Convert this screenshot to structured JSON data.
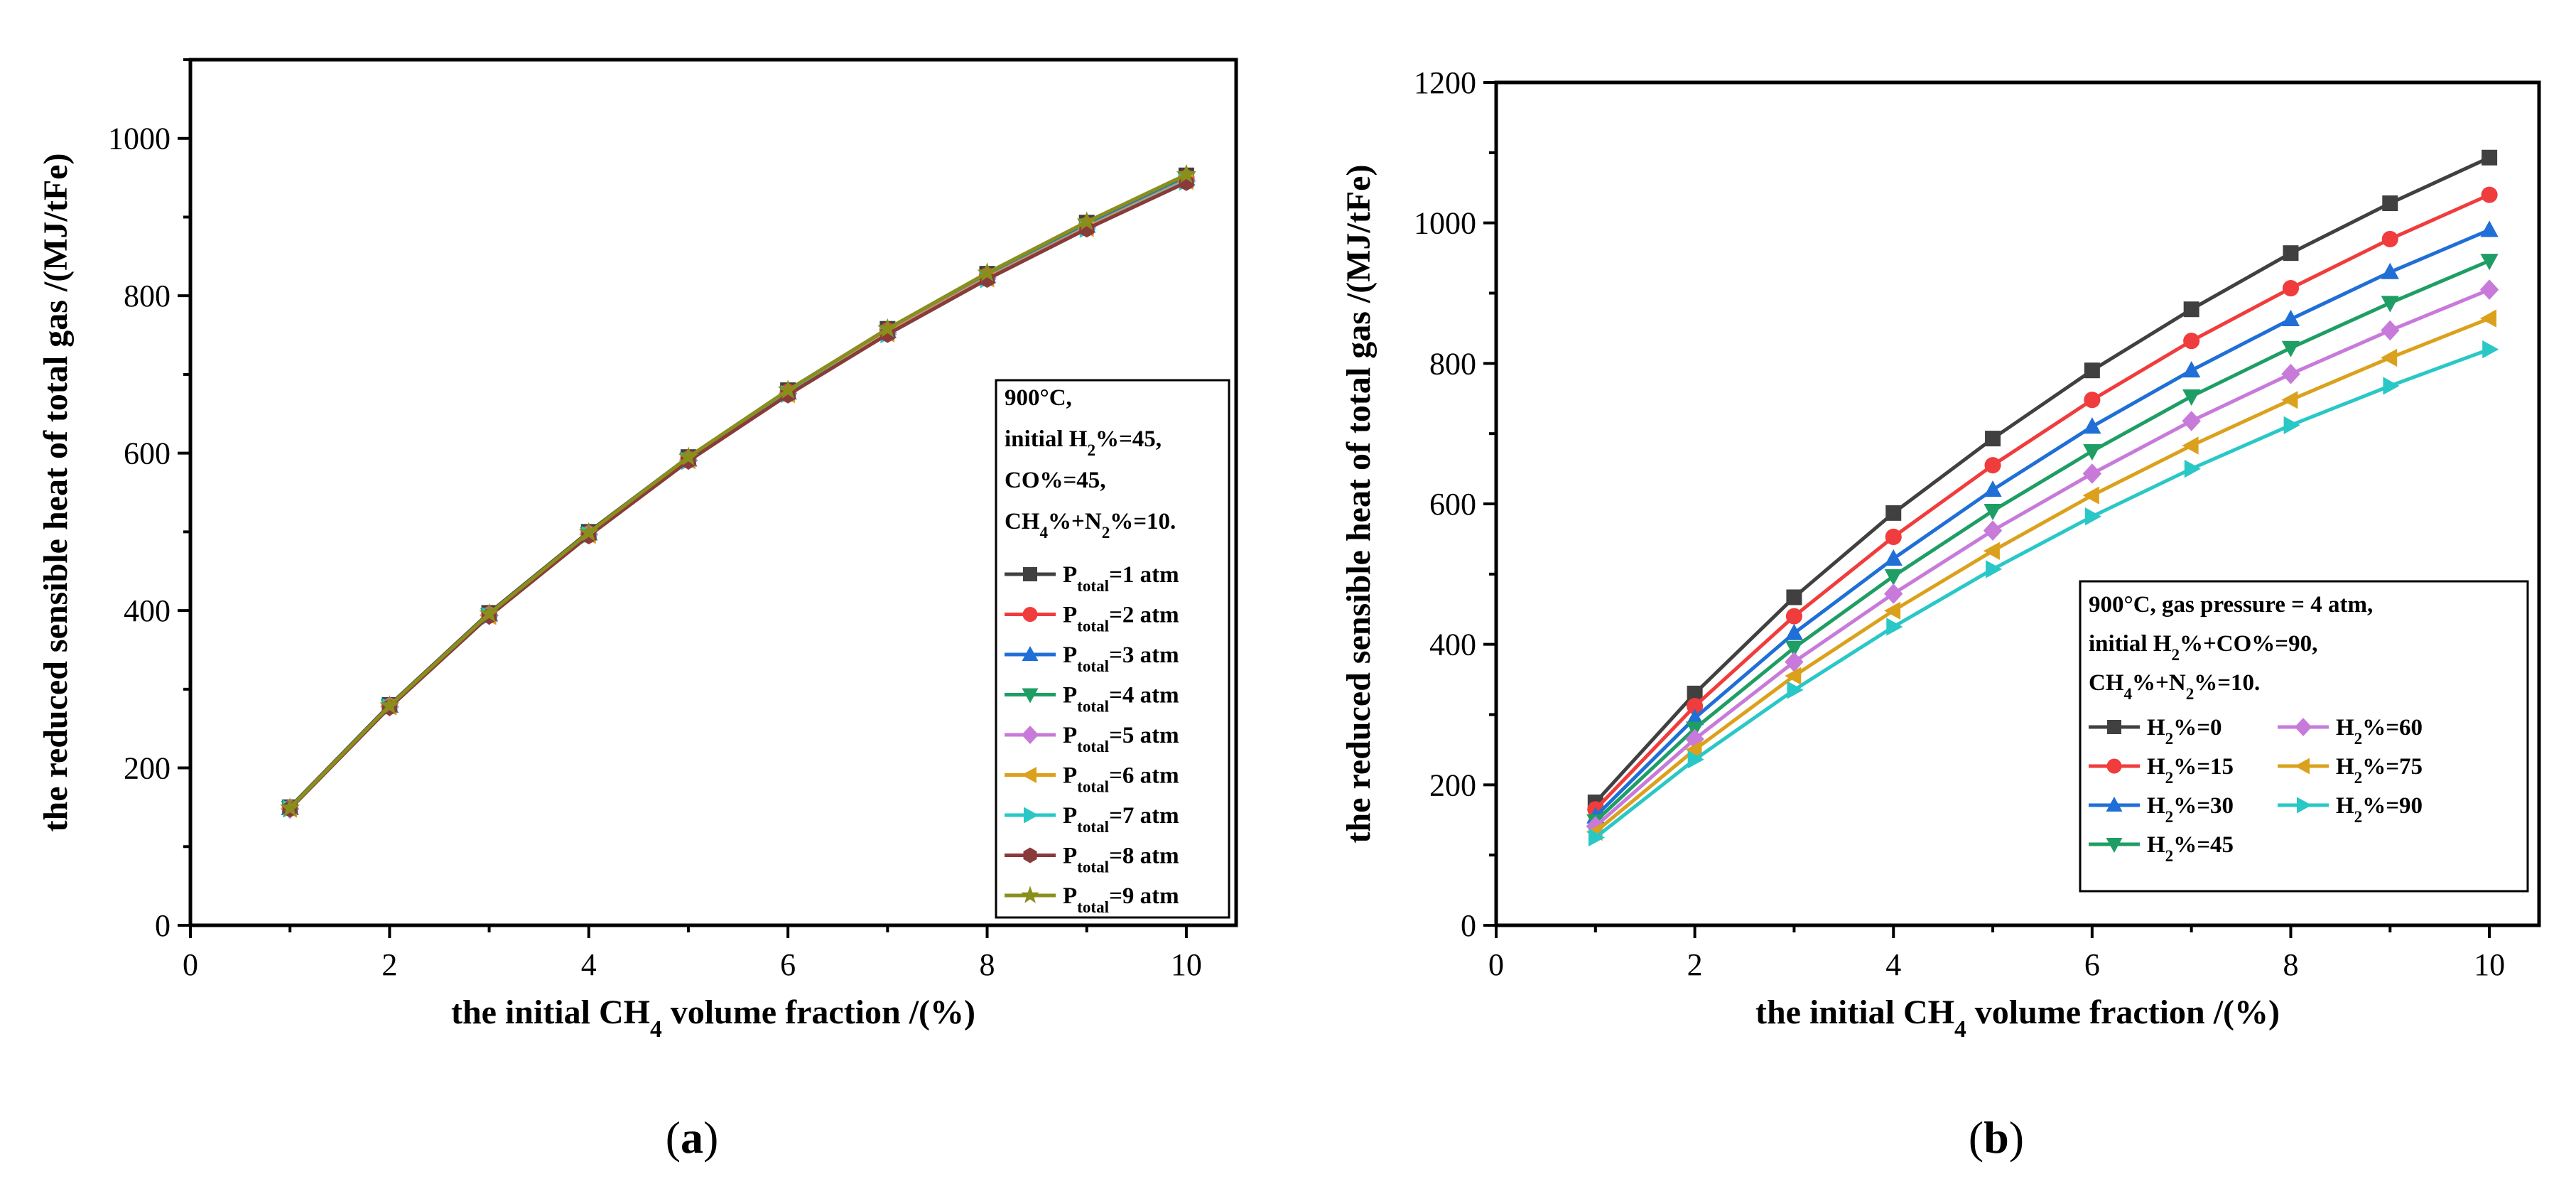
{
  "chart_data": [
    {
      "type": "line",
      "panel_label": "(a)",
      "panel_letter": "a",
      "xlabel_parts": [
        "the initial CH",
        "4",
        " volume fraction /(%)"
      ],
      "ylabel": "the reduced sensible heat of total gas /(MJ/tFe)",
      "xlim": [
        0,
        10.5
      ],
      "ylim": [
        0,
        1100
      ],
      "xticks": [
        0,
        2,
        4,
        6,
        8,
        10
      ],
      "yticks": [
        0,
        200,
        400,
        600,
        800,
        1000
      ],
      "grid": false,
      "legend_position": "right",
      "conditions": [
        [
          {
            "t": "900°C,"
          }
        ],
        [
          {
            "t": "initial H"
          },
          {
            "t": "2",
            "sub": true
          },
          {
            "t": "%=45,"
          }
        ],
        [
          {
            "t": "CO%=45,"
          }
        ],
        [
          {
            "t": "CH"
          },
          {
            "t": "4",
            "sub": true
          },
          {
            "t": "%+N"
          },
          {
            "t": "2",
            "sub": true
          },
          {
            "t": "%=10."
          }
        ]
      ],
      "x": [
        1,
        2,
        3,
        4,
        5,
        6,
        7,
        8,
        9,
        10
      ],
      "series": [
        {
          "name": "P_total=1 atm",
          "label_parts": [
            {
              "t": "P"
            },
            {
              "t": "total",
              "sub": true
            },
            {
              "t": "=1 atm"
            }
          ],
          "color": "#404040",
          "marker": "square",
          "values": [
            150,
            280,
            397,
            500,
            595,
            680,
            758,
            828,
            893,
            953
          ]
        },
        {
          "name": "P_total=2 atm",
          "label_parts": [
            {
              "t": "P"
            },
            {
              "t": "total",
              "sub": true
            },
            {
              "t": "=2 atm"
            }
          ],
          "color": "#f03c3c",
          "marker": "circle",
          "values": [
            149,
            279,
            395,
            498,
            593,
            678,
            756,
            826,
            890,
            950
          ]
        },
        {
          "name": "P_total=3 atm",
          "label_parts": [
            {
              "t": "P"
            },
            {
              "t": "total",
              "sub": true
            },
            {
              "t": "=3 atm"
            }
          ],
          "color": "#1f6fd6",
          "marker": "triangle-up",
          "values": [
            149,
            279,
            395,
            498,
            592,
            677,
            755,
            825,
            889,
            949
          ]
        },
        {
          "name": "P_total=4 atm",
          "label_parts": [
            {
              "t": "P"
            },
            {
              "t": "total",
              "sub": true
            },
            {
              "t": "=4 atm"
            }
          ],
          "color": "#1e9e64",
          "marker": "triangle-down",
          "values": [
            149,
            278,
            394,
            497,
            592,
            676,
            754,
            824,
            888,
            948
          ]
        },
        {
          "name": "P_total=5 atm",
          "label_parts": [
            {
              "t": "P"
            },
            {
              "t": "total",
              "sub": true
            },
            {
              "t": "=5 atm"
            }
          ],
          "color": "#c77ad9",
          "marker": "diamond",
          "values": [
            148,
            278,
            394,
            497,
            591,
            676,
            753,
            823,
            887,
            947
          ]
        },
        {
          "name": "P_total=6 atm",
          "label_parts": [
            {
              "t": "P"
            },
            {
              "t": "total",
              "sub": true
            },
            {
              "t": "=6 atm"
            }
          ],
          "color": "#dba11c",
          "marker": "triangle-left",
          "values": [
            148,
            278,
            393,
            496,
            591,
            675,
            752,
            822,
            886,
            946
          ]
        },
        {
          "name": "P_total=7 atm",
          "label_parts": [
            {
              "t": "P"
            },
            {
              "t": "total",
              "sub": true
            },
            {
              "t": "=7 atm"
            }
          ],
          "color": "#2ac7c7",
          "marker": "triangle-right",
          "values": [
            148,
            277,
            393,
            496,
            590,
            675,
            751,
            821,
            885,
            945
          ]
        },
        {
          "name": "P_total=8 atm",
          "label_parts": [
            {
              "t": "P"
            },
            {
              "t": "total",
              "sub": true
            },
            {
              "t": "=8 atm"
            }
          ],
          "color": "#8a3a3a",
          "marker": "hexagon",
          "values": [
            148,
            277,
            393,
            495,
            590,
            674,
            751,
            821,
            885,
            944
          ]
        },
        {
          "name": "P_total=9 atm",
          "label_parts": [
            {
              "t": "P"
            },
            {
              "t": "total",
              "sub": true
            },
            {
              "t": "=9 atm"
            }
          ],
          "color": "#8a8f1c",
          "marker": "star",
          "values": [
            149,
            279,
            396,
            499,
            595,
            680,
            758,
            829,
            894,
            954
          ]
        }
      ]
    },
    {
      "type": "line",
      "panel_label": "(b)",
      "panel_letter": "b",
      "xlabel_parts": [
        "the initial CH",
        "4",
        " volume fraction /(%)"
      ],
      "ylabel": "the reduced sensible heat of total gas /(MJ/tFe)",
      "xlim": [
        0,
        10.5
      ],
      "ylim": [
        0,
        1200
      ],
      "xticks": [
        0,
        2,
        4,
        6,
        8,
        10
      ],
      "yticks": [
        0,
        200,
        400,
        600,
        800,
        1000,
        1200
      ],
      "grid": false,
      "legend_position": "bottom-right",
      "conditions": [
        [
          {
            "t": "900°C,  gas pressure = 4 atm,"
          }
        ],
        [
          {
            "t": "initial H"
          },
          {
            "t": "2",
            "sub": true
          },
          {
            "t": "%+CO%=90,"
          }
        ],
        [
          {
            "t": "CH"
          },
          {
            "t": "4",
            "sub": true
          },
          {
            "t": "%+N"
          },
          {
            "t": "2",
            "sub": true
          },
          {
            "t": "%=10."
          }
        ]
      ],
      "x": [
        1,
        2,
        3,
        4,
        5,
        6,
        7,
        8,
        9,
        10
      ],
      "series": [
        {
          "name": "H2%=0",
          "label_parts": [
            {
              "t": "H"
            },
            {
              "t": "2",
              "sub": true
            },
            {
              "t": "%=0"
            }
          ],
          "color": "#404040",
          "marker": "square",
          "values": [
            175,
            330,
            467,
            587,
            693,
            790,
            877,
            957,
            1028,
            1093
          ]
        },
        {
          "name": "H2%=15",
          "label_parts": [
            {
              "t": "H"
            },
            {
              "t": "2",
              "sub": true
            },
            {
              "t": "%=15"
            }
          ],
          "color": "#f03c3c",
          "marker": "circle",
          "values": [
            165,
            312,
            440,
            553,
            655,
            748,
            832,
            907,
            977,
            1040
          ]
        },
        {
          "name": "H2%=30",
          "label_parts": [
            {
              "t": "H"
            },
            {
              "t": "2",
              "sub": true
            },
            {
              "t": "%=30"
            }
          ],
          "color": "#1f6fd6",
          "marker": "triangle-up",
          "values": [
            155,
            295,
            416,
            522,
            620,
            710,
            790,
            863,
            930,
            990
          ]
        },
        {
          "name": "H2%=45",
          "label_parts": [
            {
              "t": "H"
            },
            {
              "t": "2",
              "sub": true
            },
            {
              "t": "%=45"
            }
          ],
          "color": "#1e9e64",
          "marker": "triangle-down",
          "values": [
            148,
            280,
            395,
            497,
            590,
            675,
            753,
            822,
            886,
            946
          ]
        },
        {
          "name": "H2%=60",
          "label_parts": [
            {
              "t": "H"
            },
            {
              "t": "2",
              "sub": true
            },
            {
              "t": "%=60"
            }
          ],
          "color": "#c77ad9",
          "marker": "diamond",
          "values": [
            141,
            265,
            375,
            472,
            562,
            643,
            718,
            785,
            847,
            905
          ]
        },
        {
          "name": "H2%=75",
          "label_parts": [
            {
              "t": "H"
            },
            {
              "t": "2",
              "sub": true
            },
            {
              "t": "%=75"
            }
          ],
          "color": "#dba11c",
          "marker": "triangle-left",
          "values": [
            133,
            250,
            355,
            448,
            533,
            612,
            683,
            748,
            808,
            864
          ]
        },
        {
          "name": "H2%=90",
          "label_parts": [
            {
              "t": "H"
            },
            {
              "t": "2",
              "sub": true
            },
            {
              "t": "%=90"
            }
          ],
          "color": "#2ac7c7",
          "marker": "triangle-right",
          "values": [
            125,
            236,
            335,
            425,
            507,
            582,
            650,
            712,
            768,
            820
          ]
        }
      ]
    }
  ]
}
